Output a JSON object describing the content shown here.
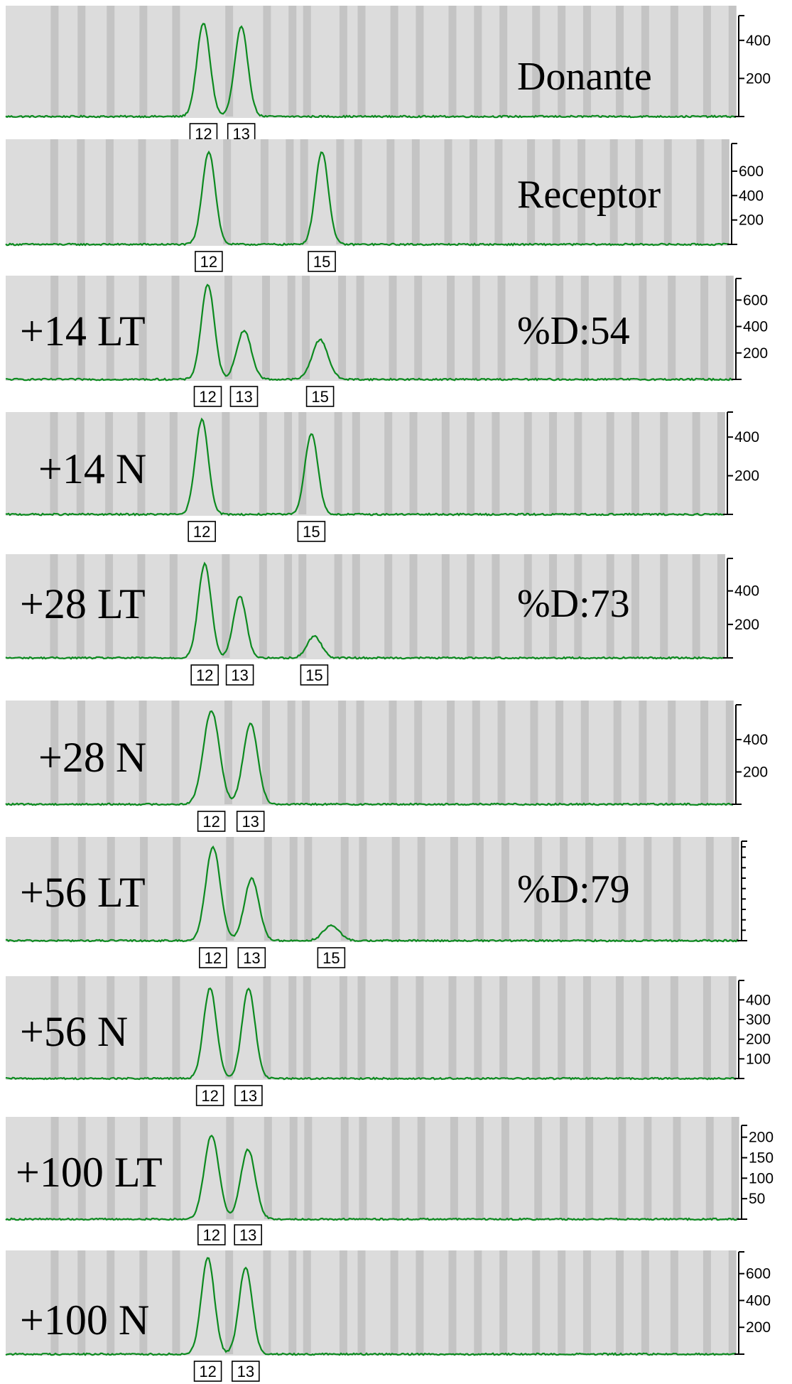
{
  "colors": {
    "trace": "#0c8a1f",
    "background": "#dcdcdc",
    "band": "#c4c4c4",
    "axis": "#000000"
  },
  "chart_data": [
    {
      "type": "line",
      "sample": "",
      "annotation": "Donante",
      "x_range": [
        0,
        100
      ],
      "y_ticks": [
        "400",
        "200"
      ],
      "y_tick_values": [
        400,
        200
      ],
      "y_max": 500,
      "peaks": [
        {
          "allele": "12",
          "x": 26.8,
          "height": 490,
          "width": 0.9
        },
        {
          "allele": "13",
          "x": 32.0,
          "height": 470,
          "width": 0.9
        }
      ]
    },
    {
      "type": "line",
      "sample": "",
      "annotation": "Receptor",
      "x_range": [
        0,
        100
      ],
      "y_ticks": [
        "600",
        "400",
        "200"
      ],
      "y_tick_values": [
        600,
        400,
        200
      ],
      "y_max": 780,
      "peaks": [
        {
          "allele": "12",
          "x": 27.8,
          "height": 760,
          "width": 0.9
        },
        {
          "allele": "15",
          "x": 43.5,
          "height": 760,
          "width": 0.9
        }
      ]
    },
    {
      "type": "line",
      "sample": "+14 LT",
      "annotation": "%D:54",
      "x_range": [
        0,
        100
      ],
      "y_ticks": [
        "600",
        "400",
        "200"
      ],
      "y_tick_values": [
        600,
        400,
        200
      ],
      "y_max": 720,
      "peaks": [
        {
          "allele": "12",
          "x": 27.5,
          "height": 720,
          "width": 0.9
        },
        {
          "allele": "13",
          "x": 32.5,
          "height": 370,
          "width": 1.0
        },
        {
          "allele": "15",
          "x": 43.0,
          "height": 300,
          "width": 1.1
        }
      ]
    },
    {
      "type": "line",
      "sample": "+14 N",
      "annotation": "",
      "x_range": [
        0,
        100
      ],
      "y_ticks": [
        "400",
        "200"
      ],
      "y_tick_values": [
        400,
        200
      ],
      "y_max": 500,
      "peaks": [
        {
          "allele": "12",
          "x": 27.0,
          "height": 490,
          "width": 0.9
        },
        {
          "allele": "15",
          "x": 42.3,
          "height": 420,
          "width": 0.9
        }
      ]
    },
    {
      "type": "line",
      "sample": "+28 LT",
      "annotation": "%D:73",
      "x_range": [
        0,
        100
      ],
      "y_ticks": [
        "400",
        "200"
      ],
      "y_tick_values": [
        400,
        200
      ],
      "y_max": 560,
      "peaks": [
        {
          "allele": "12",
          "x": 27.4,
          "height": 560,
          "width": 0.9
        },
        {
          "allele": "13",
          "x": 32.3,
          "height": 370,
          "width": 0.9
        },
        {
          "allele": "15",
          "x": 42.7,
          "height": 130,
          "width": 1.0
        }
      ]
    },
    {
      "type": "line",
      "sample": "+28 N",
      "annotation": "",
      "x_range": [
        0,
        100
      ],
      "y_ticks": [
        "400",
        "200"
      ],
      "y_tick_values": [
        400,
        200
      ],
      "y_max": 580,
      "peaks": [
        {
          "allele": "12",
          "x": 28.0,
          "height": 580,
          "width": 1.1
        },
        {
          "allele": "13",
          "x": 33.4,
          "height": 500,
          "width": 1.0
        }
      ]
    },
    {
      "type": "line",
      "sample": "+56 LT",
      "annotation": "%D:79",
      "x_range": [
        0,
        100
      ],
      "y_ticks": [],
      "y_tick_values": [],
      "y_max": 560,
      "minor_ticks": 9,
      "peaks": [
        {
          "allele": "12",
          "x": 28.0,
          "height": 560,
          "width": 1.0
        },
        {
          "allele": "13",
          "x": 33.3,
          "height": 370,
          "width": 1.0
        },
        {
          "allele": "15",
          "x": 44.2,
          "height": 90,
          "width": 1.1
        }
      ]
    },
    {
      "type": "line",
      "sample": "+56 N",
      "annotation": "",
      "x_range": [
        0,
        100
      ],
      "y_ticks": [
        "400",
        "300",
        "200",
        "100"
      ],
      "y_tick_values": [
        400,
        300,
        200,
        100
      ],
      "y_max": 470,
      "peaks": [
        {
          "allele": "12",
          "x": 27.7,
          "height": 460,
          "width": 0.9
        },
        {
          "allele": "13",
          "x": 33.0,
          "height": 460,
          "width": 0.9
        }
      ]
    },
    {
      "type": "line",
      "sample": "+100 LT",
      "annotation": "",
      "x_range": [
        0,
        100
      ],
      "y_ticks": [
        "200",
        "150",
        "100",
        "50"
      ],
      "y_tick_values": [
        200,
        150,
        100,
        50
      ],
      "y_max": 215,
      "peaks": [
        {
          "allele": "12",
          "x": 27.8,
          "height": 205,
          "width": 1.0
        },
        {
          "allele": "13",
          "x": 32.8,
          "height": 170,
          "width": 1.0
        }
      ]
    },
    {
      "type": "line",
      "sample": "+100 N",
      "annotation": "",
      "x_range": [
        0,
        100
      ],
      "y_ticks": [
        "600",
        "400",
        "200"
      ],
      "y_tick_values": [
        600,
        400,
        200
      ],
      "y_max": 720,
      "peaks": [
        {
          "allele": "12",
          "x": 27.4,
          "height": 720,
          "width": 0.9
        },
        {
          "allele": "13",
          "x": 32.6,
          "height": 650,
          "width": 0.9
        }
      ]
    }
  ]
}
